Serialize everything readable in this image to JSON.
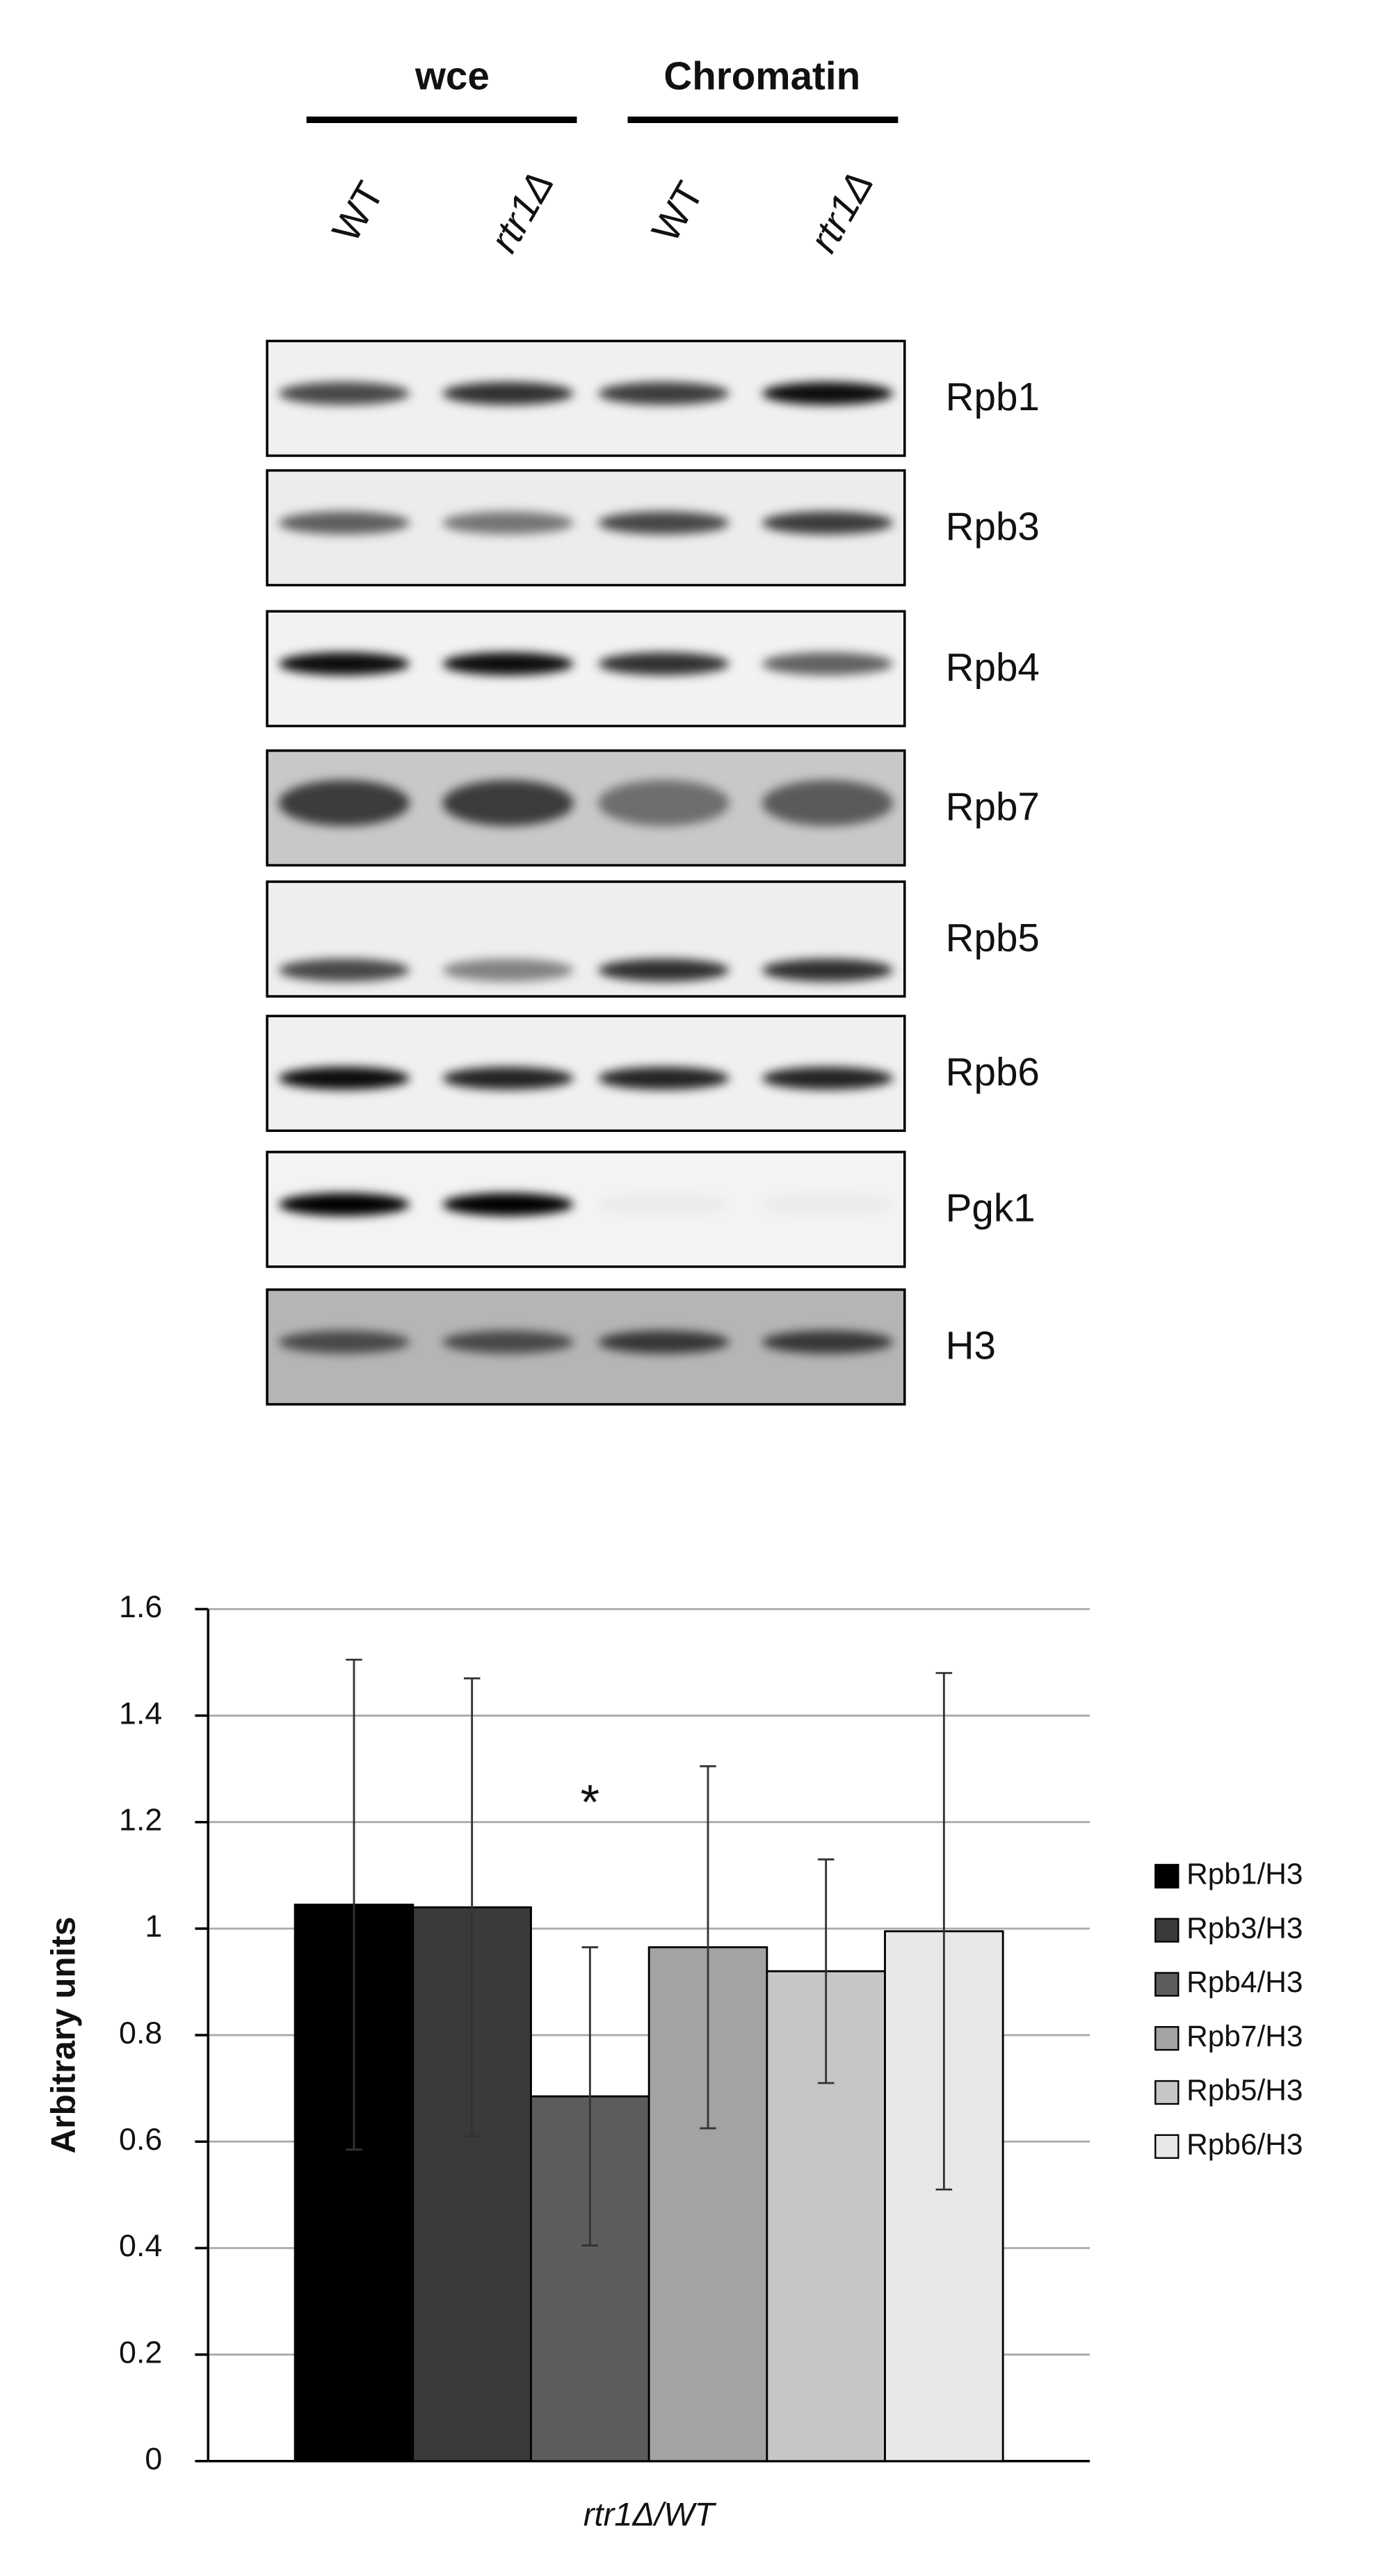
{
  "blot": {
    "groups": [
      "wce",
      "Chromatin"
    ],
    "lanes": [
      "WT",
      "rtr1Δ",
      "WT",
      "rtr1Δ"
    ],
    "proteins": [
      "Rpb1",
      "Rpb3",
      "Rpb4",
      "Rpb7",
      "Rpb5",
      "Rpb6",
      "Pgk1",
      "H3"
    ]
  },
  "chart_data": {
    "type": "bar",
    "y_label": "Arbitrary units",
    "categories": [
      "rtr1Δ/WT"
    ],
    "annotation": "*",
    "series": [
      {
        "name": "Rpb1/H3",
        "color": "#000000",
        "values": [
          1.045
        ],
        "errors": [
          0.46
        ]
      },
      {
        "name": "Rpb3/H3",
        "color": "#3a3a3a",
        "values": [
          1.04
        ],
        "errors": [
          0.43
        ]
      },
      {
        "name": "Rpb4/H3",
        "color": "#5c5c5c",
        "values": [
          0.685
        ],
        "errors": [
          0.28
        ]
      },
      {
        "name": "Rpb7/H3",
        "color": "#a3a3a3",
        "values": [
          0.965
        ],
        "errors": [
          0.34
        ]
      },
      {
        "name": "Rpb5/H3",
        "color": "#c6c6c6",
        "values": [
          0.92
        ],
        "errors": [
          0.21
        ]
      },
      {
        "name": "Rpb6/H3",
        "color": "#e8e8e8",
        "values": [
          0.995
        ],
        "errors": [
          0.485
        ]
      }
    ],
    "ylim": [
      0,
      1.6
    ],
    "yticks": [
      0,
      0.2,
      0.4,
      0.6,
      0.8,
      1,
      1.2,
      1.4,
      1.6
    ],
    "grid": true,
    "legend": "right"
  }
}
